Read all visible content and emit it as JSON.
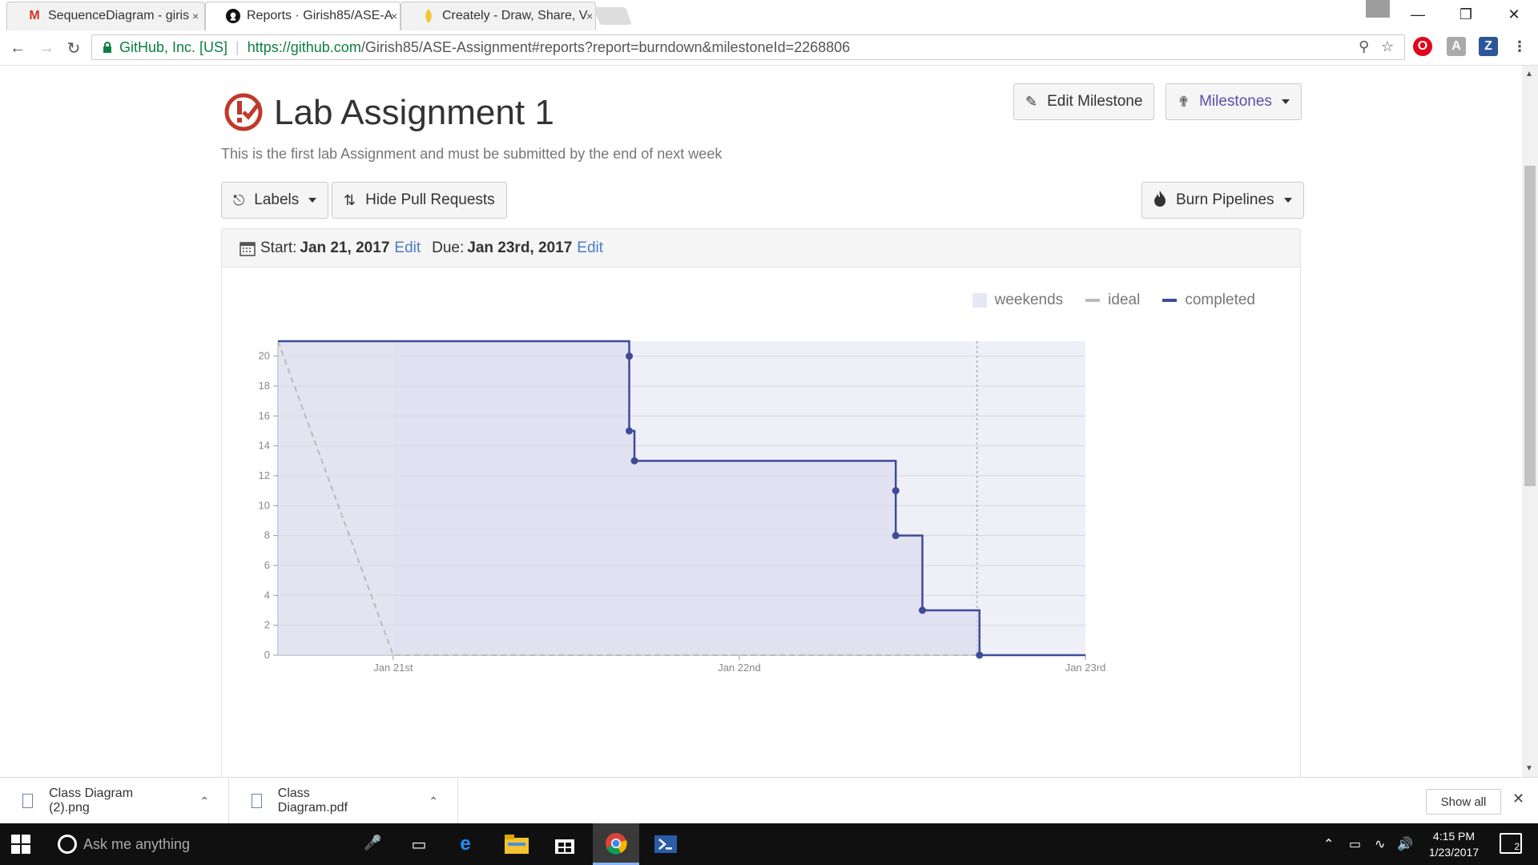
{
  "browser": {
    "tabs": [
      {
        "title": "SequenceDiagram - giris",
        "favicon": "M",
        "favicon_color": "#d93025"
      },
      {
        "title": "Reports · Girish85/ASE-A",
        "favicon": "github-icon",
        "favicon_color": "#000000"
      },
      {
        "title": "Creately - Draw, Share, V",
        "favicon": "creately-icon",
        "favicon_color": "#f4b400"
      }
    ],
    "close_glyph": "×",
    "site_org": "GitHub, Inc. [US]",
    "url_host": "https://github.com",
    "url_path": "/Girish85/ASE-Assignment#reports?report=burndown&milestoneId=2268806",
    "extensions": [
      {
        "label": "O",
        "color": "#e0061b"
      },
      {
        "label": "A",
        "color": "#aaaaaa"
      },
      {
        "label": "Z",
        "color": "#2b579a"
      }
    ]
  },
  "milestone": {
    "title": "Lab Assignment 1",
    "description": "This is the first lab Assignment and must be submitted by the end of next week",
    "edit_button": "Edit Milestone",
    "milestones_button": "Milestones"
  },
  "filters": {
    "labels_button": "Labels",
    "hide_pr_button": "Hide Pull Requests",
    "burn_pipelines_button": "Burn Pipelines"
  },
  "dates": {
    "start_label": "Start:",
    "start_value": "Jan 21, 2017",
    "start_edit": "Edit",
    "due_label": "Due:",
    "due_value": "Jan 23rd, 2017",
    "due_edit": "Edit"
  },
  "legend": {
    "weekends": "weekends",
    "ideal": "ideal",
    "completed": "completed"
  },
  "colors": {
    "completed": "#3d4b99",
    "ideal": "#bbbbbb",
    "weekend_fill": "#e6e6f4",
    "plot_bg": "#f5f5fb",
    "accent_red": "#c0392b"
  },
  "chart_data": {
    "type": "line",
    "title": "",
    "xlabel": "",
    "ylabel": "",
    "ylim": [
      0,
      21
    ],
    "yticks": [
      0,
      2,
      4,
      6,
      8,
      10,
      12,
      14,
      16,
      18,
      20
    ],
    "xlim": [
      0,
      2.333
    ],
    "xticks": [
      {
        "value": 0.333,
        "label": "Jan 21st"
      },
      {
        "value": 1.333,
        "label": "Jan 22nd"
      },
      {
        "value": 2.333,
        "label": "Jan 23rd"
      }
    ],
    "weekend_range": [
      0.333,
      2.333
    ],
    "today_marker": 2.02,
    "series": [
      {
        "name": "ideal",
        "style": "dashed",
        "points": [
          [
            0,
            21
          ],
          [
            0.333,
            0
          ],
          [
            2.333,
            0
          ]
        ]
      },
      {
        "name": "completed",
        "style": "step",
        "points": [
          [
            0,
            21
          ],
          [
            1.015,
            21
          ],
          [
            1.015,
            20
          ],
          [
            1.015,
            15
          ],
          [
            1.03,
            15
          ],
          [
            1.03,
            13
          ],
          [
            1.785,
            13
          ],
          [
            1.785,
            11
          ],
          [
            1.785,
            8
          ],
          [
            1.862,
            8
          ],
          [
            1.862,
            3
          ],
          [
            2.027,
            3
          ],
          [
            2.027,
            0
          ],
          [
            2.333,
            0
          ]
        ],
        "markers": [
          [
            1.015,
            20
          ],
          [
            1.015,
            15
          ],
          [
            1.03,
            13
          ],
          [
            1.785,
            11
          ],
          [
            1.785,
            8
          ],
          [
            1.862,
            3
          ],
          [
            2.027,
            0
          ]
        ]
      }
    ],
    "grid": true,
    "legend_position": "top-right"
  },
  "downloads": {
    "items": [
      {
        "name": "Class Diagram (2).png"
      },
      {
        "name": "Class Diagram.pdf"
      }
    ],
    "show_all": "Show all"
  },
  "taskbar": {
    "search_placeholder": "Ask me anything",
    "time": "4:15 PM",
    "date": "1/23/2017",
    "notification_count": "2"
  }
}
